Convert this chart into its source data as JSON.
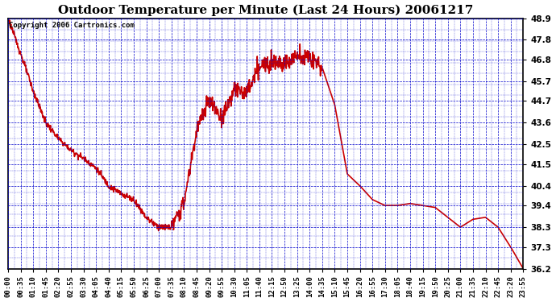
{
  "title": "Outdoor Temperature per Minute (Last 24 Hours) 20061217",
  "copyright_text": "Copyright 2006 Cartronics.com",
  "background_color": "#ffffff",
  "plot_bg_color": "#ffffff",
  "line_color": "#cc0000",
  "grid_color": "#0000cc",
  "border_color": "#000000",
  "ylim": [
    36.2,
    48.9
  ],
  "yticks": [
    36.2,
    37.3,
    38.3,
    39.4,
    40.4,
    41.5,
    42.5,
    43.6,
    44.7,
    45.7,
    46.8,
    47.8,
    48.9
  ],
  "xtick_labels": [
    "00:00",
    "00:35",
    "01:10",
    "01:45",
    "02:20",
    "02:55",
    "03:30",
    "04:05",
    "04:40",
    "05:15",
    "05:50",
    "06:25",
    "07:00",
    "07:35",
    "08:10",
    "08:45",
    "09:20",
    "09:55",
    "10:30",
    "11:05",
    "11:40",
    "12:15",
    "12:50",
    "13:25",
    "14:00",
    "14:35",
    "15:10",
    "15:45",
    "16:20",
    "16:55",
    "17:30",
    "18:05",
    "18:40",
    "19:15",
    "19:50",
    "20:25",
    "21:00",
    "21:35",
    "22:10",
    "22:45",
    "23:20",
    "23:55"
  ],
  "xtick_positions": [
    0,
    35,
    70,
    105,
    140,
    175,
    210,
    245,
    280,
    315,
    350,
    385,
    420,
    455,
    490,
    525,
    560,
    595,
    630,
    665,
    700,
    735,
    770,
    805,
    840,
    875,
    910,
    945,
    980,
    1015,
    1050,
    1085,
    1120,
    1155,
    1190,
    1225,
    1260,
    1295,
    1330,
    1365,
    1400,
    1435
  ],
  "key_times_minutes": [
    0,
    35,
    70,
    105,
    140,
    175,
    210,
    245,
    280,
    315,
    350,
    385,
    420,
    455,
    490,
    525,
    560,
    595,
    630,
    665,
    700,
    735,
    770,
    805,
    840,
    875,
    910,
    945,
    980,
    1015,
    1050,
    1085,
    1120,
    1155,
    1190,
    1225,
    1260,
    1295,
    1330,
    1365,
    1400,
    1435
  ],
  "key_temps": [
    48.9,
    47.1,
    45.2,
    43.6,
    42.8,
    42.2,
    41.8,
    41.3,
    40.4,
    40.0,
    39.7,
    38.8,
    38.3,
    38.3,
    39.5,
    43.2,
    44.7,
    43.8,
    45.3,
    45.1,
    46.4,
    46.8,
    46.6,
    47.0,
    46.9,
    46.4,
    44.5,
    41.0,
    40.4,
    39.7,
    39.4,
    39.4,
    39.5,
    39.4,
    39.3,
    38.8,
    38.3,
    38.7,
    38.8,
    38.3,
    37.3,
    36.2
  ],
  "title_fontsize": 11,
  "tick_fontsize": 6.5,
  "copyright_fontsize": 6.5,
  "figwidth": 6.9,
  "figheight": 3.75,
  "dpi": 100
}
